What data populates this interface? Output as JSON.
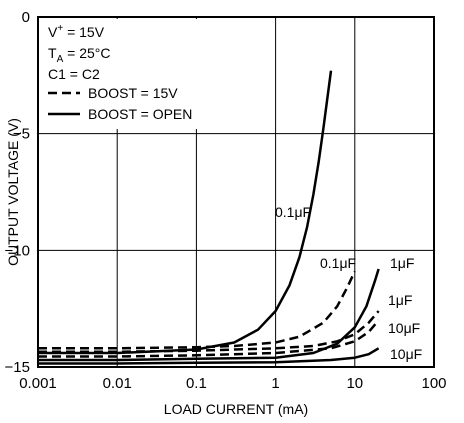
{
  "chart_data": {
    "type": "line",
    "title": "",
    "xlabel": "LOAD CURRENT (mA)",
    "ylabel": "OUTPUT VOLTAGE (V)",
    "x_scale": "log",
    "xlim": [
      0.001,
      100
    ],
    "ylim": [
      -15,
      0
    ],
    "x_ticks": [
      "0.001",
      "0.01",
      "0.1",
      "1",
      "10",
      "100"
    ],
    "y_ticks": [
      "0",
      "−5",
      "−10",
      "−15"
    ],
    "grid": true,
    "conditions": {
      "supply_prefix": "V",
      "supply_sup": "+",
      "supply_value": " = 15V",
      "temp_prefix": "T",
      "temp_sub": "A",
      "temp_value": " = 25°C",
      "caps": "C1 = C2"
    },
    "legend": [
      {
        "label": "BOOST = 15V",
        "style": "dashed"
      },
      {
        "label": "BOOST = OPEN",
        "style": "solid"
      }
    ],
    "series": [
      {
        "label": "0.1μF",
        "style": "solid",
        "x": [
          0.001,
          0.01,
          0.1,
          0.3,
          0.6,
          1,
          1.5,
          2,
          2.5,
          3,
          3.5,
          4,
          4.5,
          5
        ],
        "y": [
          -14.4,
          -14.4,
          -14.25,
          -13.95,
          -13.4,
          -12.6,
          -11.5,
          -10.3,
          -9.0,
          -7.6,
          -6.2,
          -4.8,
          -3.5,
          -2.3
        ]
      },
      {
        "label": "0.1μF",
        "style": "dashed",
        "x": [
          0.001,
          0.01,
          0.1,
          0.3,
          1,
          2,
          4,
          6,
          8,
          10
        ],
        "y": [
          -14.2,
          -14.2,
          -14.15,
          -14.1,
          -13.95,
          -13.7,
          -13.1,
          -12.4,
          -11.6,
          -10.9
        ]
      },
      {
        "label": "1μF",
        "style": "solid",
        "x": [
          0.001,
          0.01,
          0.1,
          1,
          3,
          6,
          10,
          14,
          18,
          20
        ],
        "y": [
          -14.7,
          -14.7,
          -14.65,
          -14.6,
          -14.4,
          -14.0,
          -13.3,
          -12.4,
          -11.3,
          -10.8
        ]
      },
      {
        "label": "1μF",
        "style": "dashed",
        "x": [
          0.001,
          0.01,
          0.1,
          1,
          3,
          6,
          10,
          15,
          20
        ],
        "y": [
          -14.35,
          -14.35,
          -14.3,
          -14.2,
          -14.1,
          -13.9,
          -13.6,
          -13.1,
          -12.6
        ]
      },
      {
        "label": "10μF",
        "style": "dashed",
        "x": [
          0.001,
          0.01,
          0.1,
          1,
          5,
          10,
          15,
          20
        ],
        "y": [
          -14.55,
          -14.55,
          -14.5,
          -14.4,
          -14.2,
          -13.9,
          -13.5,
          -13.0
        ]
      },
      {
        "label": "10μF",
        "style": "solid",
        "x": [
          0.001,
          0.01,
          0.1,
          1,
          5,
          10,
          15,
          20
        ],
        "y": [
          -14.85,
          -14.85,
          -14.82,
          -14.8,
          -14.7,
          -14.6,
          -14.45,
          -14.2
        ]
      }
    ]
  }
}
